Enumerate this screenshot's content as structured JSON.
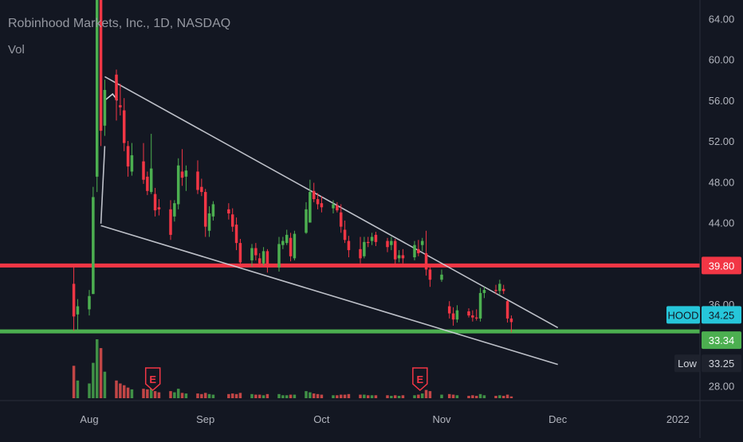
{
  "legend": {
    "title": "Robinhood Markets, Inc., 1D, NASDAQ",
    "vol_label": "Vol"
  },
  "colors": {
    "background": "#131722",
    "grid": "#1e222d",
    "up": "#26a69a",
    "down": "#ef5350",
    "up_bright": "#4caf50",
    "down_bright": "#f23645",
    "axis_text": "#b2b5be",
    "support_line": "#4caf50",
    "resistance_line": "#f23645",
    "trend_line": "#d1d4dc",
    "price_badge": "#26c6da",
    "low_badge": "#1e222d"
  },
  "badges": {
    "resistance": "39.80",
    "symbol": "HOOD",
    "last_price": "34.25",
    "support": "33.34",
    "low_label": "Low",
    "low_value": "33.25"
  },
  "earnings": [
    {
      "date": "Aug 18",
      "label": "E"
    },
    {
      "date": "Oct 26",
      "label": "E"
    }
  ],
  "chart_data": {
    "type": "candlestick",
    "symbol": "HOOD",
    "title": "Robinhood Markets, Inc., 1D, NASDAQ",
    "interval": "1D",
    "y_axis_ticks": [
      "64.00",
      "60.00",
      "56.00",
      "52.00",
      "48.00",
      "44.00",
      "36.00",
      "28.00"
    ],
    "ylim": [
      26.5,
      66.5
    ],
    "x_axis_labels": [
      "Aug",
      "Sep",
      "Oct",
      "Nov",
      "Dec",
      "2022"
    ],
    "grid": false,
    "horizontal_lines": [
      {
        "name": "resistance",
        "value": 39.8
      },
      {
        "name": "support",
        "value": 33.34
      }
    ],
    "trend_lines": [
      {
        "from": [
          "Aug 6",
          58.3
        ],
        "to": [
          "Dec 1",
          33.7
        ]
      },
      {
        "from": [
          "Aug 5",
          43.7
        ],
        "to": [
          "Dec 1",
          30.1
        ]
      },
      {
        "from": [
          "Aug 5",
          43.9
        ],
        "to": [
          "Aug 6",
          51.5
        ]
      }
    ],
    "arrow": {
      "from": [
        "Aug 6",
        55.3
      ],
      "to": [
        "Aug 7",
        56.6
      ]
    },
    "candles": [
      {
        "d": "Jul 29",
        "o": 38.0,
        "h": 39.8,
        "l": 33.4,
        "c": 34.8,
        "v": 0.55
      },
      {
        "d": "Jul 30",
        "o": 35.0,
        "h": 36.5,
        "l": 33.5,
        "c": 35.8,
        "v": 0.3
      },
      {
        "d": "Aug 2",
        "o": 35.5,
        "h": 37.4,
        "l": 34.9,
        "c": 36.8,
        "v": 0.25
      },
      {
        "d": "Aug 3",
        "o": 37.0,
        "h": 47.5,
        "l": 37.0,
        "c": 46.5,
        "v": 0.6
      },
      {
        "d": "Aug 4",
        "o": 48.5,
        "h": 85.0,
        "l": 47.0,
        "c": 70.4,
        "v": 1.0
      },
      {
        "d": "Aug 5",
        "o": 68.0,
        "h": 70.0,
        "l": 51.5,
        "c": 53.0,
        "v": 0.85
      },
      {
        "d": "Aug 6",
        "o": 53.5,
        "h": 58.0,
        "l": 52.5,
        "c": 57.0,
        "v": 0.45
      },
      {
        "d": "Aug 9",
        "o": 58.5,
        "h": 59.0,
        "l": 54.0,
        "c": 56.0,
        "v": 0.3
      },
      {
        "d": "Aug 10",
        "o": 55.5,
        "h": 57.6,
        "l": 54.5,
        "c": 55.3,
        "v": 0.25
      },
      {
        "d": "Aug 11",
        "o": 55.0,
        "h": 56.2,
        "l": 51.0,
        "c": 51.8,
        "v": 0.22
      },
      {
        "d": "Aug 12",
        "o": 51.5,
        "h": 52.0,
        "l": 48.5,
        "c": 49.5,
        "v": 0.18
      },
      {
        "d": "Aug 13",
        "o": 49.0,
        "h": 51.8,
        "l": 48.6,
        "c": 50.6,
        "v": 0.15
      },
      {
        "d": "Aug 16",
        "o": 50.0,
        "h": 51.8,
        "l": 47.8,
        "c": 48.2,
        "v": 0.16
      },
      {
        "d": "Aug 17",
        "o": 48.5,
        "h": 49.0,
        "l": 46.7,
        "c": 47.1,
        "v": 0.15
      },
      {
        "d": "Aug 18",
        "o": 47.0,
        "h": 52.7,
        "l": 46.8,
        "c": 49.3,
        "v": 0.22
      },
      {
        "d": "Aug 19",
        "o": 46.8,
        "h": 47.4,
        "l": 44.6,
        "c": 45.2,
        "v": 0.12
      },
      {
        "d": "Aug 20",
        "o": 45.5,
        "h": 46.3,
        "l": 44.7,
        "c": 45.3,
        "v": 0.1
      },
      {
        "d": "Aug 23",
        "o": 45.3,
        "h": 46.2,
        "l": 42.3,
        "c": 42.8,
        "v": 0.12
      },
      {
        "d": "Aug 24",
        "o": 44.6,
        "h": 46.2,
        "l": 44.1,
        "c": 45.9,
        "v": 0.1
      },
      {
        "d": "Aug 25",
        "o": 45.8,
        "h": 50.3,
        "l": 45.3,
        "c": 49.6,
        "v": 0.16
      },
      {
        "d": "Aug 26",
        "o": 49.0,
        "h": 51.2,
        "l": 47.6,
        "c": 48.4,
        "v": 0.09
      },
      {
        "d": "Aug 27",
        "o": 48.5,
        "h": 49.6,
        "l": 47.1,
        "c": 49.1,
        "v": 0.08
      },
      {
        "d": "Aug 30",
        "o": 49.0,
        "h": 50.1,
        "l": 46.8,
        "c": 47.2,
        "v": 0.08
      },
      {
        "d": "Aug 31",
        "o": 47.5,
        "h": 48.3,
        "l": 46.6,
        "c": 47.0,
        "v": 0.07
      },
      {
        "d": "Sep 1",
        "o": 47.0,
        "h": 47.3,
        "l": 42.6,
        "c": 43.6,
        "v": 0.09
      },
      {
        "d": "Sep 2",
        "o": 43.2,
        "h": 45.6,
        "l": 42.6,
        "c": 44.9,
        "v": 0.07
      },
      {
        "d": "Sep 3",
        "o": 44.6,
        "h": 46.1,
        "l": 44.2,
        "c": 45.8,
        "v": 0.06
      },
      {
        "d": "Sep 7",
        "o": 45.3,
        "h": 45.9,
        "l": 44.3,
        "c": 44.9,
        "v": 0.07
      },
      {
        "d": "Sep 8",
        "o": 44.8,
        "h": 45.4,
        "l": 43.1,
        "c": 43.6,
        "v": 0.08
      },
      {
        "d": "Sep 9",
        "o": 43.8,
        "h": 44.5,
        "l": 41.3,
        "c": 42.0,
        "v": 0.07
      },
      {
        "d": "Sep 10",
        "o": 42.0,
        "h": 42.4,
        "l": 39.6,
        "c": 40.1,
        "v": 0.09
      },
      {
        "d": "Sep 13",
        "o": 40.3,
        "h": 41.9,
        "l": 39.7,
        "c": 41.5,
        "v": 0.07
      },
      {
        "d": "Sep 14",
        "o": 41.5,
        "h": 42.0,
        "l": 40.3,
        "c": 40.8,
        "v": 0.06
      },
      {
        "d": "Sep 15",
        "o": 40.5,
        "h": 41.0,
        "l": 39.6,
        "c": 40.0,
        "v": 0.06
      },
      {
        "d": "Sep 16",
        "o": 40.0,
        "h": 41.6,
        "l": 39.8,
        "c": 41.2,
        "v": 0.05
      },
      {
        "d": "Sep 17",
        "o": 41.2,
        "h": 41.4,
        "l": 39.1,
        "c": 39.6,
        "v": 0.07
      },
      {
        "d": "Sep 20",
        "o": 39.6,
        "h": 42.6,
        "l": 39.2,
        "c": 41.9,
        "v": 0.07
      },
      {
        "d": "Sep 21",
        "o": 41.8,
        "h": 42.6,
        "l": 41.4,
        "c": 42.2,
        "v": 0.05
      },
      {
        "d": "Sep 22",
        "o": 42.0,
        "h": 43.3,
        "l": 41.8,
        "c": 42.8,
        "v": 0.05
      },
      {
        "d": "Sep 23",
        "o": 42.5,
        "h": 43.0,
        "l": 40.2,
        "c": 40.7,
        "v": 0.06
      },
      {
        "d": "Sep 24",
        "o": 40.5,
        "h": 43.2,
        "l": 40.3,
        "c": 42.9,
        "v": 0.06
      },
      {
        "d": "Sep 27",
        "o": 43.0,
        "h": 46.0,
        "l": 42.9,
        "c": 45.3,
        "v": 0.12
      },
      {
        "d": "Sep 28",
        "o": 44.0,
        "h": 48.2,
        "l": 44.0,
        "c": 47.0,
        "v": 0.1
      },
      {
        "d": "Sep 29",
        "o": 47.1,
        "h": 47.9,
        "l": 46.0,
        "c": 46.3,
        "v": 0.08
      },
      {
        "d": "Sep 30",
        "o": 46.3,
        "h": 46.9,
        "l": 45.3,
        "c": 45.8,
        "v": 0.07
      },
      {
        "d": "Oct 1",
        "o": 45.9,
        "h": 46.6,
        "l": 45.0,
        "c": 45.5,
        "v": 0.06
      },
      {
        "d": "Oct 4",
        "o": 45.4,
        "h": 46.2,
        "l": 44.9,
        "c": 45.8,
        "v": 0.05
      },
      {
        "d": "Oct 5",
        "o": 45.7,
        "h": 46.0,
        "l": 45.0,
        "c": 45.2,
        "v": 0.05
      },
      {
        "d": "Oct 6",
        "o": 45.0,
        "h": 45.8,
        "l": 43.0,
        "c": 43.6,
        "v": 0.06
      },
      {
        "d": "Oct 7",
        "o": 43.3,
        "h": 44.2,
        "l": 42.0,
        "c": 42.3,
        "v": 0.06
      },
      {
        "d": "Oct 8",
        "o": 42.2,
        "h": 42.7,
        "l": 40.6,
        "c": 41.3,
        "v": 0.07
      },
      {
        "d": "Oct 11",
        "o": 41.4,
        "h": 42.6,
        "l": 40.0,
        "c": 40.5,
        "v": 0.06
      },
      {
        "d": "Oct 12",
        "o": 40.7,
        "h": 42.6,
        "l": 40.5,
        "c": 42.1,
        "v": 0.06
      },
      {
        "d": "Oct 13",
        "o": 42.1,
        "h": 42.6,
        "l": 41.6,
        "c": 42.0,
        "v": 0.05
      },
      {
        "d": "Oct 14",
        "o": 42.2,
        "h": 43.0,
        "l": 41.8,
        "c": 42.6,
        "v": 0.05
      },
      {
        "d": "Oct 15",
        "o": 42.8,
        "h": 43.1,
        "l": 41.7,
        "c": 42.1,
        "v": 0.05
      },
      {
        "d": "Oct 18",
        "o": 42.2,
        "h": 42.5,
        "l": 41.1,
        "c": 41.6,
        "v": 0.05
      },
      {
        "d": "Oct 19",
        "o": 41.8,
        "h": 42.6,
        "l": 41.3,
        "c": 42.2,
        "v": 0.04
      },
      {
        "d": "Oct 20",
        "o": 42.2,
        "h": 42.4,
        "l": 39.8,
        "c": 40.4,
        "v": 0.05
      },
      {
        "d": "Oct 21",
        "o": 40.5,
        "h": 41.3,
        "l": 40.1,
        "c": 40.8,
        "v": 0.04
      },
      {
        "d": "Oct 22",
        "o": 40.8,
        "h": 41.4,
        "l": 40.0,
        "c": 40.5,
        "v": 0.05
      },
      {
        "d": "Oct 25",
        "o": 40.6,
        "h": 42.2,
        "l": 40.3,
        "c": 41.8,
        "v": 0.05
      },
      {
        "d": "Oct 26",
        "o": 41.4,
        "h": 42.3,
        "l": 40.7,
        "c": 41.0,
        "v": 0.06
      },
      {
        "d": "Oct 27",
        "o": 41.8,
        "h": 42.5,
        "l": 41.2,
        "c": 42.2,
        "v": 0.08
      },
      {
        "d": "Oct 28",
        "o": 41.0,
        "h": 43.2,
        "l": 38.8,
        "c": 39.4,
        "v": 0.14
      },
      {
        "d": "Oct 29",
        "o": 39.4,
        "h": 39.9,
        "l": 37.7,
        "c": 38.4,
        "v": 0.12
      },
      {
        "d": "Nov 1",
        "o": 38.4,
        "h": 39.4,
        "l": 38.2,
        "c": 38.9,
        "v": 0.06
      },
      {
        "d": "Nov 3",
        "o": 35.8,
        "h": 36.3,
        "l": 34.6,
        "c": 35.1,
        "v": 0.07
      },
      {
        "d": "Nov 4",
        "o": 35.1,
        "h": 35.7,
        "l": 33.9,
        "c": 34.5,
        "v": 0.06
      },
      {
        "d": "Nov 5",
        "o": 34.5,
        "h": 35.9,
        "l": 34.2,
        "c": 35.4,
        "v": 0.05
      },
      {
        "d": "Nov 8",
        "o": 35.3,
        "h": 35.6,
        "l": 34.7,
        "c": 34.9,
        "v": 0.04
      },
      {
        "d": "Nov 9",
        "o": 34.9,
        "h": 35.4,
        "l": 34.3,
        "c": 34.7,
        "v": 0.05
      },
      {
        "d": "Nov 10",
        "o": 34.7,
        "h": 35.5,
        "l": 34.4,
        "c": 34.6,
        "v": 0.04
      },
      {
        "d": "Nov 11",
        "o": 34.6,
        "h": 37.6,
        "l": 34.3,
        "c": 37.1,
        "v": 0.07
      },
      {
        "d": "Nov 12",
        "o": 37.1,
        "h": 37.7,
        "l": 36.6,
        "c": 37.4,
        "v": 0.05
      },
      {
        "d": "Nov 15",
        "o": 37.4,
        "h": 37.9,
        "l": 37.0,
        "c": 37.3,
        "v": 0.04
      },
      {
        "d": "Nov 16",
        "o": 37.3,
        "h": 38.4,
        "l": 36.9,
        "c": 38.0,
        "v": 0.05
      },
      {
        "d": "Nov 17",
        "o": 37.5,
        "h": 37.9,
        "l": 37.0,
        "c": 37.3,
        "v": 0.04
      },
      {
        "d": "Nov 18",
        "o": 36.3,
        "h": 36.4,
        "l": 34.2,
        "c": 34.6,
        "v": 0.06
      },
      {
        "d": "Nov 19",
        "o": 34.6,
        "h": 34.9,
        "l": 33.25,
        "c": 34.25,
        "v": 0.03
      }
    ]
  }
}
